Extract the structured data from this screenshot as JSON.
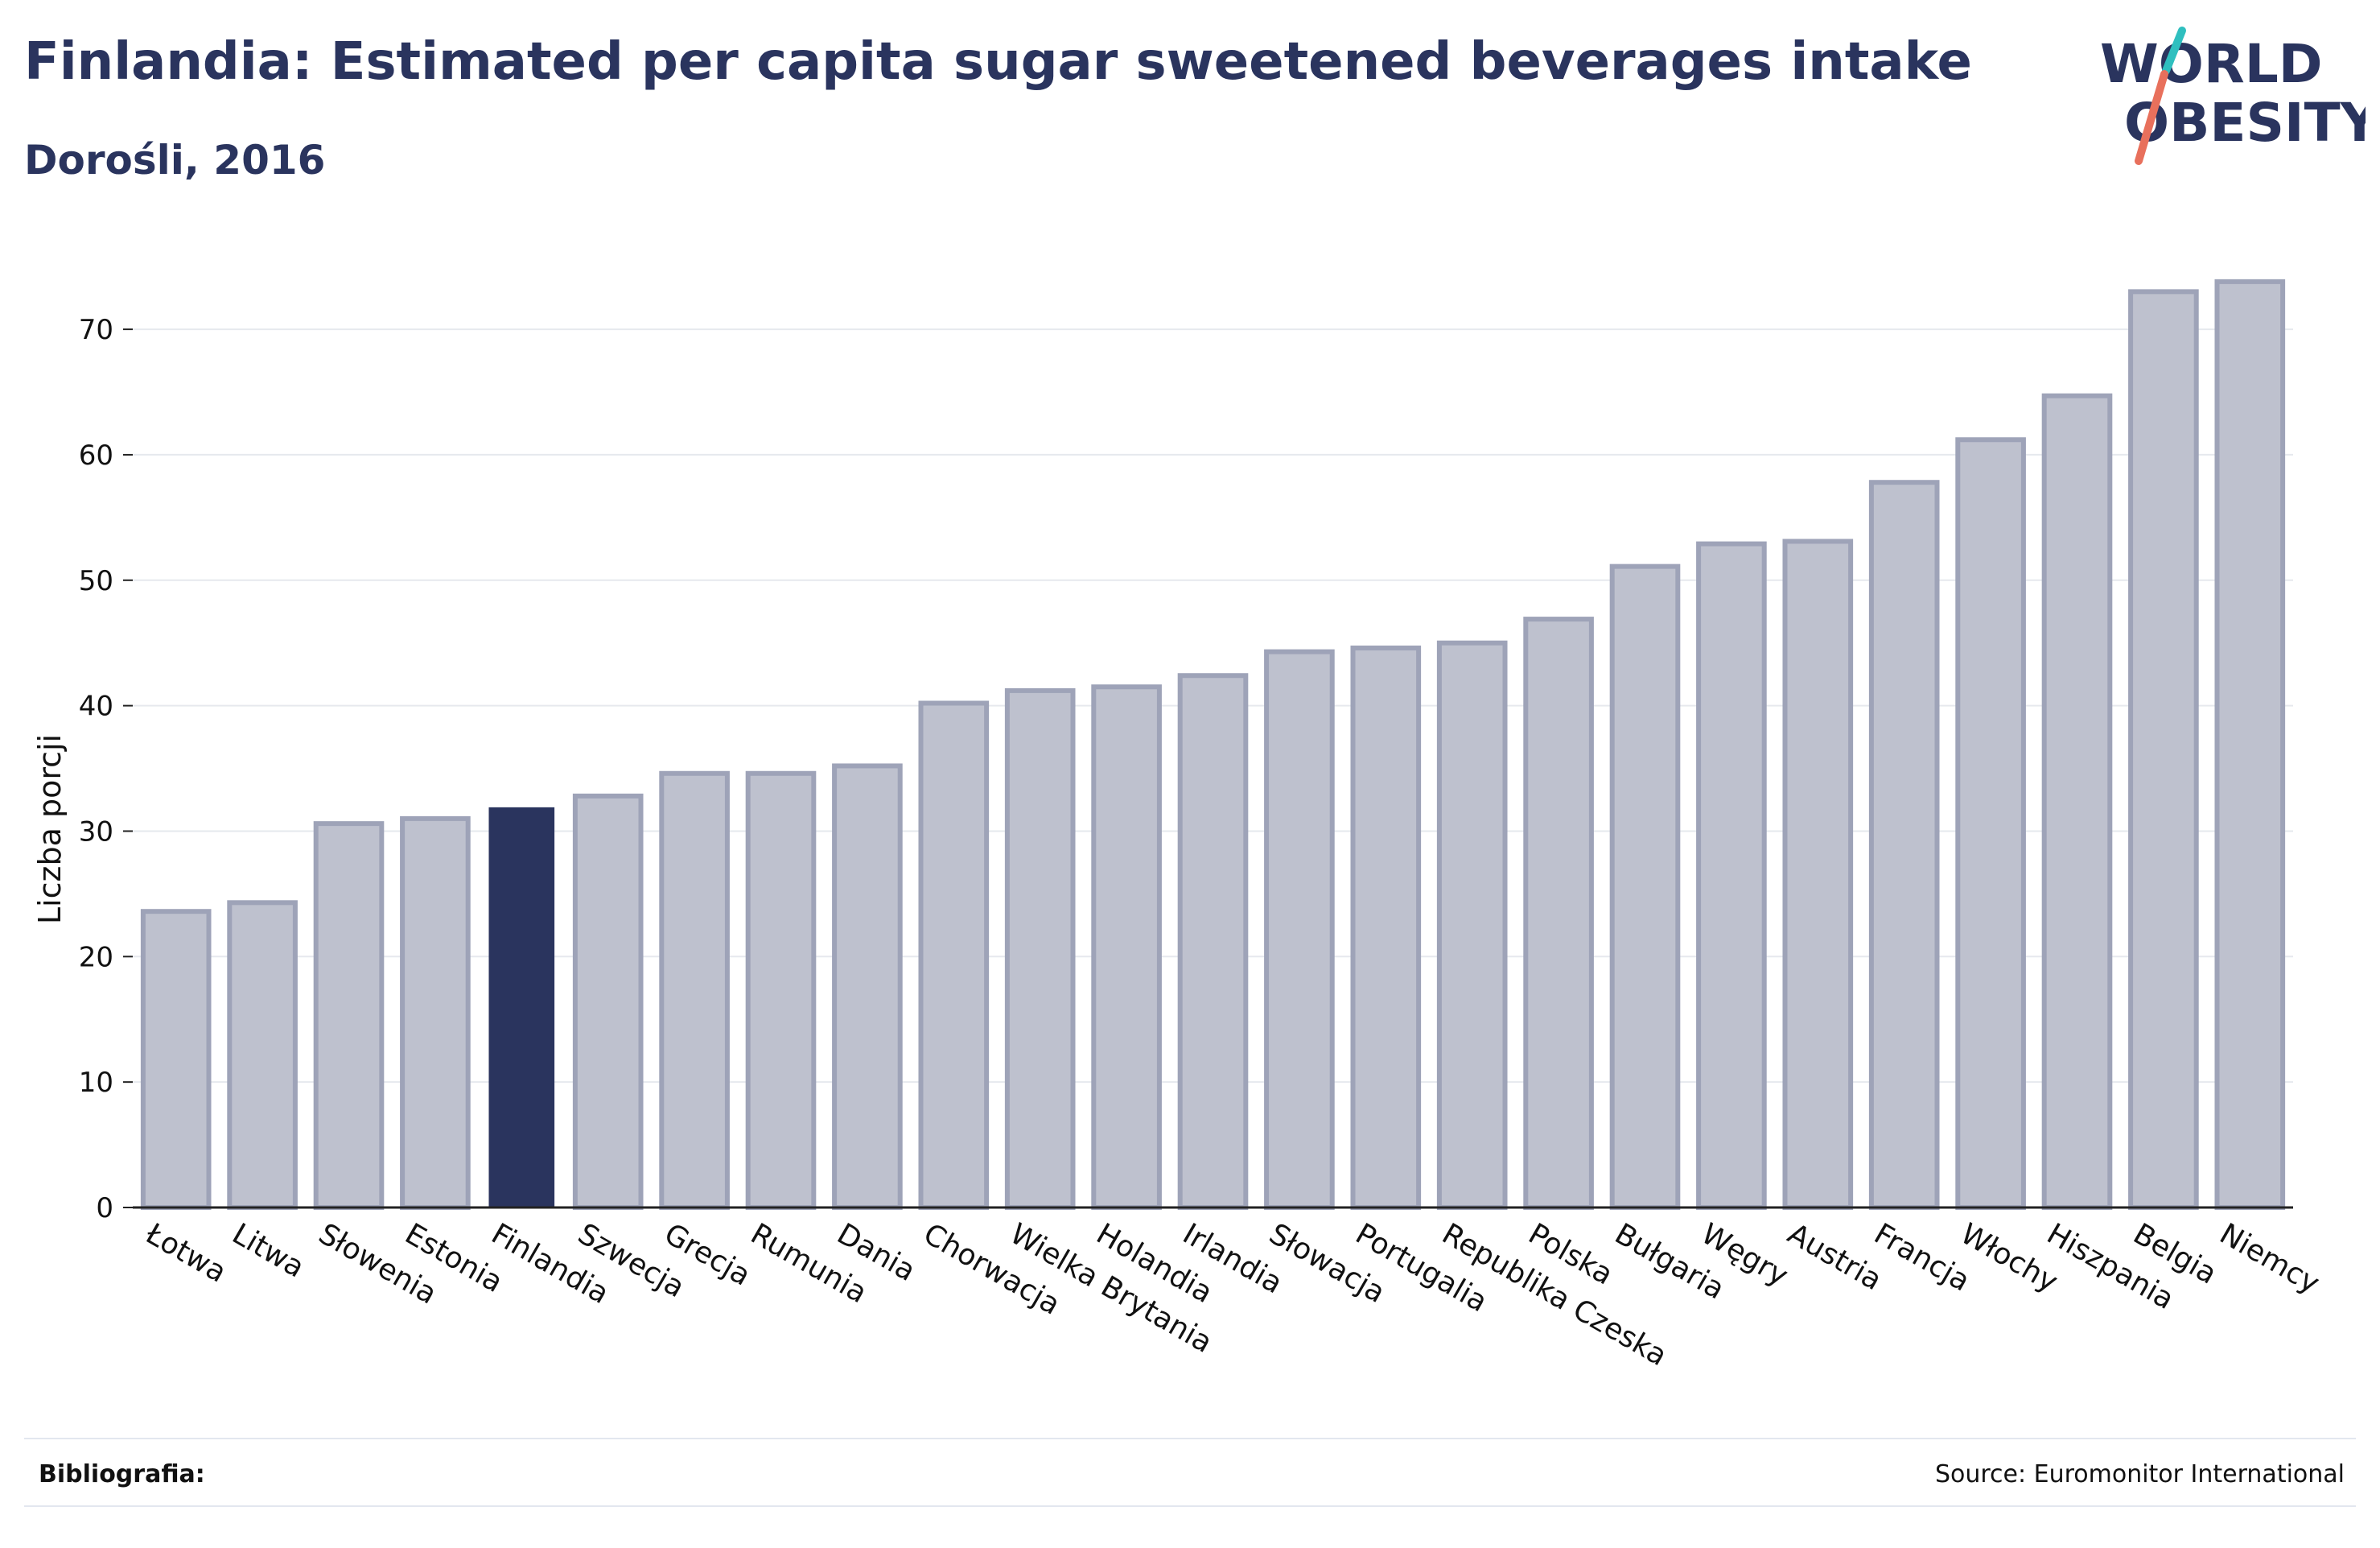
{
  "header": {
    "title": "Finlandia: Estimated per capita sugar sweetened beverages intake",
    "subtitle": "Dorośli, 2016"
  },
  "logo": {
    "line1": "WORLD",
    "line2": "OBESITY"
  },
  "footer": {
    "bibliography_label": "Bibliografia:",
    "source": "Source: Euromonitor International"
  },
  "colors": {
    "highlight": "#2a345e",
    "bar_fill": "#bec1ce",
    "bar_stroke": "#9ea3b8",
    "grid": "#e6e9ee",
    "axis": "#222222",
    "text": "#2a345e",
    "logo_teal": "#2fbfbf",
    "logo_coral": "#e8705c"
  },
  "chart_data": {
    "type": "bar",
    "ylabel": "Liczba porcji",
    "xlabel": "",
    "ylim": [
      0,
      77
    ],
    "yticks": [
      0,
      10,
      20,
      30,
      40,
      50,
      60,
      70
    ],
    "grid": true,
    "highlight": "Finlandia",
    "categories": [
      "Łotwa",
      "Litwa",
      "Słowenia",
      "Estonia",
      "Finlandia",
      "Szwecja",
      "Grecja",
      "Rumunia",
      "Dania",
      "Chorwacja",
      "Wielka Brytania",
      "Holandia",
      "Irlandia",
      "Słowacja",
      "Portugalia",
      "Republika Czeska",
      "Polska",
      "Bułgaria",
      "Węgry",
      "Austria",
      "Francja",
      "Włochy",
      "Hiszpania",
      "Belgia",
      "Niemcy"
    ],
    "values": [
      23.6,
      24.3,
      30.6,
      31.0,
      31.9,
      32.8,
      34.6,
      34.6,
      35.2,
      40.2,
      41.2,
      41.5,
      42.4,
      44.3,
      44.6,
      45.0,
      46.9,
      51.1,
      52.9,
      53.1,
      57.8,
      61.2,
      64.7,
      73.0,
      73.8
    ]
  }
}
